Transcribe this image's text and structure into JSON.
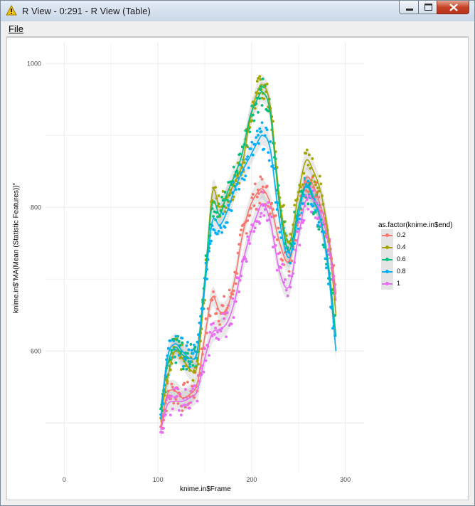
{
  "window": {
    "title": "R View - 0:291 - R View (Table)",
    "icon": "warning-triangle-icon"
  },
  "menu": {
    "file": "File"
  },
  "colors": {
    "series": [
      "#F8766D",
      "#A3A500",
      "#00BF7D",
      "#00B0F6",
      "#E76BF3"
    ],
    "band": "#999999",
    "grid": "#ebebeb"
  },
  "chart_data": {
    "type": "scatter",
    "title": "",
    "xlabel": "knime.in$Frame",
    "ylabel": "knime.in$\"MA(Mean (Statistic Features))\"",
    "xlim": [
      -20,
      320
    ],
    "ylim": [
      430,
      1030
    ],
    "xticks": [
      0,
      100,
      200,
      300
    ],
    "yticks": [
      600,
      800,
      1000
    ],
    "grid": true,
    "legend_position": "right",
    "legend_title": "as.factor(knime.in$end)",
    "smooth": true,
    "series": [
      {
        "name": "0.2",
        "x": [
          103,
          110,
          118,
          126,
          134,
          142,
          150,
          158,
          166,
          174,
          182,
          190,
          198,
          206,
          212,
          220,
          230,
          240,
          250,
          258,
          266,
          274,
          282,
          290
        ],
        "y": [
          495,
          540,
          545,
          535,
          540,
          555,
          620,
          675,
          655,
          660,
          700,
          760,
          800,
          820,
          825,
          805,
          750,
          725,
          790,
          840,
          830,
          800,
          760,
          680
        ]
      },
      {
        "name": "0.4",
        "x": [
          103,
          110,
          118,
          126,
          134,
          142,
          150,
          158,
          166,
          174,
          182,
          190,
          198,
          206,
          212,
          220,
          230,
          240,
          250,
          258,
          266,
          274,
          282,
          290
        ],
        "y": [
          510,
          560,
          600,
          590,
          575,
          580,
          690,
          820,
          800,
          815,
          835,
          860,
          920,
          960,
          970,
          940,
          810,
          750,
          820,
          865,
          850,
          820,
          760,
          650
        ]
      },
      {
        "name": "0.6",
        "x": [
          103,
          110,
          118,
          126,
          134,
          142,
          150,
          158,
          166,
          174,
          182,
          190,
          198,
          206,
          212,
          220,
          230,
          240,
          250,
          258,
          266,
          274,
          282,
          290
        ],
        "y": [
          520,
          580,
          605,
          595,
          590,
          600,
          700,
          805,
          790,
          820,
          845,
          875,
          925,
          950,
          960,
          930,
          800,
          740,
          800,
          830,
          810,
          780,
          720,
          620
        ]
      },
      {
        "name": "0.8",
        "x": [
          103,
          110,
          118,
          126,
          134,
          142,
          150,
          158,
          166,
          174,
          182,
          190,
          198,
          206,
          212,
          220,
          230,
          240,
          250,
          258,
          266,
          274,
          282,
          290
        ],
        "y": [
          505,
          590,
          610,
          600,
          590,
          600,
          690,
          780,
          775,
          795,
          825,
          850,
          870,
          890,
          900,
          880,
          780,
          730,
          790,
          830,
          815,
          780,
          710,
          600
        ]
      },
      {
        "name": "1",
        "x": [
          103,
          110,
          118,
          126,
          134,
          142,
          150,
          158,
          166,
          174,
          182,
          190,
          198,
          206,
          212,
          220,
          230,
          240,
          250,
          258,
          266,
          274,
          282,
          290
        ],
        "y": [
          490,
          525,
          530,
          530,
          535,
          545,
          590,
          625,
          630,
          640,
          670,
          720,
          760,
          790,
          805,
          780,
          710,
          690,
          760,
          810,
          810,
          790,
          750,
          670
        ]
      }
    ]
  }
}
